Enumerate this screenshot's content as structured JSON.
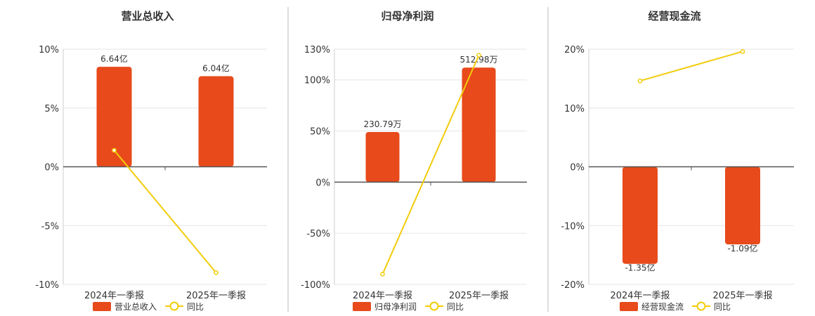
{
  "colors": {
    "bar": "#e84a1b",
    "line": "#f2cc0c",
    "grid": "#e6e6e6",
    "axis": "#555555",
    "divider": "#bbbbbb"
  },
  "chart_data": [
    {
      "type": "bar",
      "title": "营业总收入",
      "categories": [
        "2024年一季报",
        "2025年一季报"
      ],
      "series": [
        {
          "name": "营业总收入",
          "kind": "bar",
          "values": [
            8.5,
            7.7
          ],
          "labels": [
            "6.64亿",
            "6.04亿"
          ]
        },
        {
          "name": "同比",
          "kind": "line",
          "values": [
            1.4,
            -9.0
          ]
        }
      ],
      "ylim": [
        -10,
        10
      ],
      "yticks": [
        10,
        5,
        0,
        -5,
        -10
      ],
      "ytick_labels": [
        "10%",
        "5%",
        "0%",
        "-5%",
        "-10%"
      ],
      "legend_position": "bottom",
      "grid": true
    },
    {
      "type": "bar",
      "title": "归母净利润",
      "categories": [
        "2024年一季报",
        "2025年一季报"
      ],
      "series": [
        {
          "name": "归母净利润",
          "kind": "bar",
          "values": [
            49,
            112
          ],
          "labels": [
            "230.79万",
            "512.98万"
          ]
        },
        {
          "name": "同比",
          "kind": "line",
          "values": [
            -90,
            124
          ]
        }
      ],
      "ylim": [
        -100,
        130
      ],
      "yticks": [
        130,
        100,
        50,
        0,
        -50,
        -100
      ],
      "ytick_labels": [
        "130%",
        "100%",
        "50%",
        "0%",
        "-50%",
        "-100%"
      ],
      "legend_position": "bottom",
      "grid": true
    },
    {
      "type": "bar",
      "title": "经营现金流",
      "categories": [
        "2024年一季报",
        "2025年一季报"
      ],
      "series": [
        {
          "name": "经营现金流",
          "kind": "bar",
          "values": [
            -16.5,
            -13.2
          ],
          "labels": [
            "-1.35亿",
            "-1.09亿"
          ]
        },
        {
          "name": "同比",
          "kind": "line",
          "values": [
            14.6,
            19.6
          ]
        }
      ],
      "ylim": [
        -20,
        20
      ],
      "yticks": [
        20,
        10,
        0,
        -10,
        -20
      ],
      "ytick_labels": [
        "20%",
        "10%",
        "0%",
        "-10%",
        "-20%"
      ],
      "legend_position": "bottom",
      "grid": true
    }
  ]
}
